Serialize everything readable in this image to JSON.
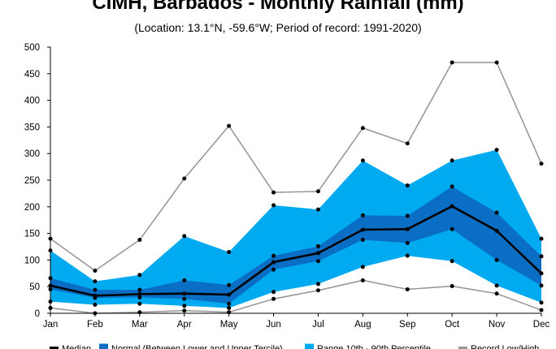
{
  "title": "CIMH, Barbados - Monthly Rainfall (mm)",
  "subtitle": "(Location: 13.1°N, -59.6°W; Period of record: 1991-2020)",
  "chart_data": {
    "type": "line",
    "categories": [
      "Jan",
      "Feb",
      "Mar",
      "Apr",
      "May",
      "Jun",
      "Jul",
      "Aug",
      "Sep",
      "Oct",
      "Nov",
      "Dec"
    ],
    "ylim": [
      0,
      500
    ],
    "yticks": [
      "0",
      "50",
      "100",
      "150",
      "200",
      "250",
      "300",
      "350",
      "400",
      "450",
      "500"
    ],
    "grid": false,
    "legend": "bottom",
    "colors": {
      "median": "#000000",
      "tercile": "#0a6fc4",
      "percentile": "#00aaf0",
      "record": "#999999"
    },
    "series": [
      {
        "name": "Median",
        "values": [
          52,
          33,
          36,
          37,
          35,
          96,
          113,
          157,
          158,
          201,
          155,
          75
        ]
      },
      {
        "name": "Normal (Between Lower and Upper Tercile)",
        "lower": [
          45,
          29,
          30,
          27,
          18,
          82,
          98,
          138,
          132,
          158,
          100,
          52
        ],
        "upper": [
          66,
          44,
          44,
          62,
          53,
          108,
          126,
          184,
          183,
          238,
          189,
          107
        ]
      },
      {
        "name": "Range 10th - 90th Percentile",
        "lower": [
          22,
          16,
          18,
          14,
          10,
          40,
          55,
          87,
          108,
          98,
          52,
          20
        ],
        "upper": [
          118,
          60,
          72,
          145,
          115,
          203,
          195,
          287,
          240,
          287,
          307,
          140
        ]
      },
      {
        "name": "Record Low/High",
        "lower": [
          10,
          0,
          2,
          5,
          2,
          27,
          43,
          62,
          45,
          51,
          37,
          6
        ],
        "upper": [
          140,
          80,
          138,
          253,
          352,
          227,
          229,
          348,
          319,
          471,
          471,
          281
        ]
      }
    ]
  }
}
